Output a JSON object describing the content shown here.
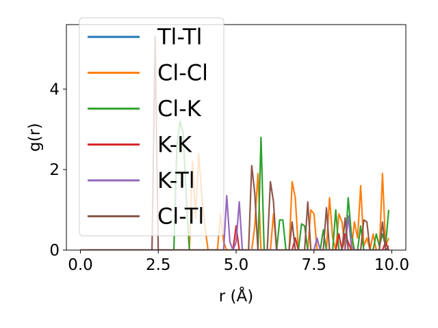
{
  "chart_data": {
    "type": "line",
    "xlabel": "r (Å)",
    "ylabel": "g(r)",
    "xlim": [
      -0.45,
      10.45
    ],
    "ylim": [
      0,
      5.6
    ],
    "xticks": [
      0.0,
      2.5,
      5.0,
      7.5,
      10.0
    ],
    "xtick_labels": [
      "0.0",
      "2.5",
      "5.0",
      "7.5",
      "10.0"
    ],
    "yticks": [
      0,
      2,
      4
    ],
    "ytick_labels": [
      "0",
      "2",
      "4"
    ],
    "grid": false,
    "legend_position": "top-left",
    "series": [
      {
        "name": "Tl-Tl",
        "color": "#1f77b4",
        "points": [
          [
            0,
            0
          ],
          [
            9.9,
            0
          ]
        ]
      },
      {
        "name": "Cl-Cl",
        "color": "#ff7f0e",
        "points": [
          [
            0,
            0
          ],
          [
            3.5,
            0
          ],
          [
            3.6,
            2.2
          ],
          [
            3.7,
            0.8
          ],
          [
            3.8,
            2.4
          ],
          [
            3.9,
            1.3
          ],
          [
            4.0,
            0.6
          ],
          [
            4.1,
            0
          ],
          [
            4.4,
            0
          ],
          [
            4.5,
            0.9
          ],
          [
            4.6,
            0.2
          ],
          [
            4.7,
            0
          ],
          [
            5.5,
            0
          ],
          [
            5.6,
            0.6
          ],
          [
            5.7,
            1.9
          ],
          [
            5.8,
            0
          ],
          [
            6.1,
            0
          ],
          [
            6.2,
            0.9
          ],
          [
            6.3,
            0
          ],
          [
            6.7,
            0
          ],
          [
            6.8,
            1.7
          ],
          [
            6.9,
            1.3
          ],
          [
            7.0,
            0
          ],
          [
            7.3,
            0
          ],
          [
            7.4,
            1.0
          ],
          [
            7.5,
            0.9
          ],
          [
            7.6,
            0
          ],
          [
            7.9,
            0
          ],
          [
            8.0,
            1.3
          ],
          [
            8.1,
            0.3
          ],
          [
            8.2,
            0
          ],
          [
            8.3,
            0.9
          ],
          [
            8.4,
            0.7
          ],
          [
            8.5,
            0
          ],
          [
            8.7,
            0
          ],
          [
            8.8,
            0.7
          ],
          [
            8.9,
            0.3
          ],
          [
            9.0,
            1.6
          ],
          [
            9.1,
            0.1
          ],
          [
            9.2,
            0.3
          ],
          [
            9.3,
            0
          ],
          [
            9.4,
            0.4
          ],
          [
            9.5,
            0
          ],
          [
            9.6,
            0
          ],
          [
            9.7,
            1.9
          ],
          [
            9.8,
            0.1
          ],
          [
            9.9,
            0.3
          ]
        ]
      },
      {
        "name": "Cl-K",
        "color": "#2ca02c",
        "points": [
          [
            0,
            0
          ],
          [
            3.0,
            0
          ],
          [
            3.1,
            2.6
          ],
          [
            3.2,
            3.2
          ],
          [
            3.3,
            2.9
          ],
          [
            3.4,
            1.3
          ],
          [
            3.5,
            0
          ],
          [
            5.7,
            0
          ],
          [
            5.8,
            2.8
          ],
          [
            5.9,
            0
          ],
          [
            6.3,
            0
          ],
          [
            6.4,
            0.75
          ],
          [
            6.5,
            0.75
          ],
          [
            6.6,
            0
          ],
          [
            7.0,
            0
          ],
          [
            7.1,
            0.65
          ],
          [
            7.2,
            0.6
          ],
          [
            7.3,
            0
          ],
          [
            7.7,
            0
          ],
          [
            7.8,
            0.5
          ],
          [
            7.9,
            0
          ],
          [
            8.1,
            0
          ],
          [
            8.2,
            1.0
          ],
          [
            8.3,
            0
          ],
          [
            8.5,
            0
          ],
          [
            8.6,
            1.3
          ],
          [
            8.7,
            0.4
          ],
          [
            8.8,
            0
          ],
          [
            8.9,
            0
          ],
          [
            9.0,
            0.6
          ],
          [
            9.1,
            0
          ],
          [
            9.4,
            0
          ],
          [
            9.5,
            0.4
          ],
          [
            9.6,
            0.1
          ],
          [
            9.7,
            0.4
          ],
          [
            9.8,
            0.1
          ],
          [
            9.9,
            1.0
          ]
        ]
      },
      {
        "name": "K-K",
        "color": "#d62728",
        "points": [
          [
            0,
            0
          ],
          [
            4.9,
            0
          ],
          [
            5.0,
            0.6
          ],
          [
            5.1,
            0
          ],
          [
            6.8,
            0
          ],
          [
            6.9,
            0.3
          ],
          [
            7.0,
            0
          ],
          [
            8.2,
            0
          ],
          [
            8.3,
            0.4
          ],
          [
            8.4,
            0
          ],
          [
            8.5,
            0.4
          ],
          [
            8.6,
            0.2
          ],
          [
            8.7,
            0
          ],
          [
            9.7,
            0
          ],
          [
            9.8,
            0.2
          ],
          [
            9.9,
            0
          ]
        ]
      },
      {
        "name": "K-Tl",
        "color": "#9467bd",
        "points": [
          [
            0,
            0
          ],
          [
            4.6,
            0
          ],
          [
            4.7,
            1.35
          ],
          [
            4.8,
            0.2
          ],
          [
            4.9,
            0
          ],
          [
            5.0,
            0.2
          ],
          [
            5.1,
            1.2
          ],
          [
            5.2,
            0
          ],
          [
            7.5,
            0
          ],
          [
            7.6,
            0.3
          ],
          [
            7.7,
            0
          ],
          [
            8.5,
            0
          ],
          [
            8.6,
            0.85
          ],
          [
            8.7,
            0.1
          ],
          [
            8.8,
            0
          ],
          [
            9.9,
            0
          ]
        ]
      },
      {
        "name": "Cl-Tl",
        "color": "#8c564b",
        "points": [
          [
            0,
            0
          ],
          [
            2.3,
            0
          ],
          [
            2.4,
            5.3
          ],
          [
            2.5,
            0
          ],
          [
            5.4,
            0
          ],
          [
            5.5,
            2.1
          ],
          [
            5.6,
            1.4
          ],
          [
            5.7,
            0
          ],
          [
            6.0,
            0
          ],
          [
            6.1,
            1.7
          ],
          [
            6.2,
            1.2
          ],
          [
            6.3,
            0
          ],
          [
            6.7,
            0
          ],
          [
            6.8,
            0.7
          ],
          [
            6.9,
            0
          ],
          [
            7.2,
            0
          ],
          [
            7.3,
            1.2
          ],
          [
            7.4,
            0
          ],
          [
            7.8,
            0
          ],
          [
            7.9,
            1.05
          ],
          [
            8.0,
            0
          ],
          [
            8.4,
            0
          ],
          [
            8.5,
            0.8
          ],
          [
            8.6,
            0
          ],
          [
            9.0,
            0
          ],
          [
            9.1,
            0.75
          ],
          [
            9.2,
            0.7
          ],
          [
            9.3,
            0
          ],
          [
            9.6,
            0
          ],
          [
            9.7,
            0.7
          ],
          [
            9.8,
            0
          ],
          [
            9.9,
            0.1
          ]
        ]
      }
    ]
  }
}
